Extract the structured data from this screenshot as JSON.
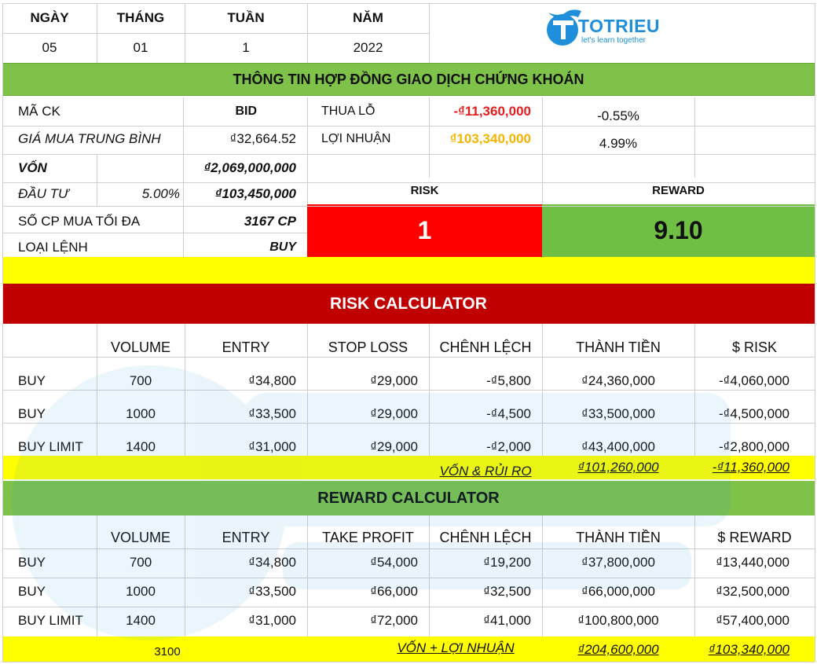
{
  "date_header": {
    "labels": [
      "NGÀY",
      "THÁNG",
      "TUẦN",
      "NĂM"
    ],
    "values": [
      "05",
      "01",
      "1",
      "2022"
    ]
  },
  "logo": {
    "brand": "TOTRIEU",
    "tagline": "let's learn together"
  },
  "contract": {
    "title": "THÔNG TIN HỢP ĐỒNG GIAO DỊCH CHỨNG KHOÁN",
    "stock_code_label": "MÃ CK",
    "stock_code_value": "BID",
    "avg_price_label": "GIÁ MUA TRUNG BÌNH",
    "avg_price_value": "₫32,664.52",
    "loss_label": "THUA LỖ",
    "loss_value": "-₫11,360,000",
    "loss_pct": "-0.55%",
    "profit_label": "LỢI NHUẬN",
    "profit_value": "₫103,340,000",
    "profit_pct": "4.99%",
    "capital_label": "VỐN",
    "capital_value": "₫2,069,000,000",
    "invest_label": "ĐẦU TƯ",
    "invest_pct": "5.00%",
    "invest_value": "₫103,450,000",
    "max_shares_label": "SỐ CP MUA TỐI ĐA",
    "max_shares_value": "3167 CP",
    "order_type_label": "LOẠI LỆNH",
    "order_type_value": "BUY",
    "risk_label": "RISK",
    "reward_label": "REWARD",
    "risk_value": "1",
    "reward_value": "9.10"
  },
  "risk_calc": {
    "title": "RISK CALCULATOR",
    "headers": [
      "VOLUME",
      "ENTRY",
      "STOP LOSS",
      "CHÊNH LỆCH",
      "THÀNH TIỀN",
      "$ RISK"
    ],
    "rows": [
      [
        "BUY",
        "700",
        "₫34,800",
        "₫29,000",
        "-₫5,800",
        "₫24,360,000",
        "-₫4,060,000"
      ],
      [
        "BUY",
        "1000",
        "₫33,500",
        "₫29,000",
        "-₫4,500",
        "₫33,500,000",
        "-₫4,500,000"
      ],
      [
        "BUY LIMIT",
        "1400",
        "₫31,000",
        "₫29,000",
        "-₫2,000",
        "₫43,400,000",
        "-₫2,800,000"
      ]
    ],
    "total_label": "VỐN & RỦI RO",
    "total_amount": "₫101,260,000",
    "total_risk": "-₫11,360,000"
  },
  "reward_calc": {
    "title": "REWARD CALCULATOR",
    "headers": [
      "VOLUME",
      "ENTRY",
      "TAKE PROFIT",
      "CHÊNH LỆCH",
      "THÀNH TIỀN",
      "$ REWARD"
    ],
    "rows": [
      [
        "BUY",
        "700",
        "₫34,800",
        "₫54,000",
        "₫19,200",
        "₫37,800,000",
        "₫13,440,000"
      ],
      [
        "BUY",
        "1000",
        "₫33,500",
        "₫66,000",
        "₫32,500",
        "₫66,000,000",
        "₫32,500,000"
      ],
      [
        "BUY LIMIT",
        "1400",
        "₫31,000",
        "₫72,000",
        "₫41,000",
        "₫100,800,000",
        "₫57,400,000"
      ]
    ],
    "total_volume": "3100",
    "total_label": "VỐN + LỢI NHUẬN",
    "total_amount": "₫204,600,000",
    "total_reward": "₫103,340,000"
  },
  "colors": {
    "green": "#7ec24a",
    "reward_green": "#6fbf45",
    "yellow": "#ffff00",
    "red": "#ff0000",
    "dark_red": "#c00000",
    "loss_red": "#e41e1e",
    "profit_orange": "#f4b400",
    "logo_blue": "#1f8fdc"
  }
}
